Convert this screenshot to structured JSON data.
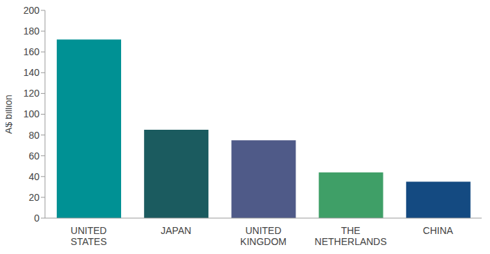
{
  "chart_data": {
    "type": "bar",
    "y_label": "A$ billion",
    "categories": [
      "UNITED STATES",
      "JAPAN",
      "UNITED KINGDOM",
      "THE NETHERLANDS",
      "CHINA"
    ],
    "values": [
      172,
      85,
      75,
      44,
      35
    ],
    "colors": [
      "#009194",
      "#1b5b5f",
      "#4f5a88",
      "#3f9f67",
      "#144a81"
    ],
    "ylim": [
      0,
      200
    ],
    "yticks": [
      0,
      20,
      40,
      60,
      80,
      100,
      120,
      140,
      160,
      180,
      200
    ],
    "grid": false,
    "data_labels": false
  }
}
